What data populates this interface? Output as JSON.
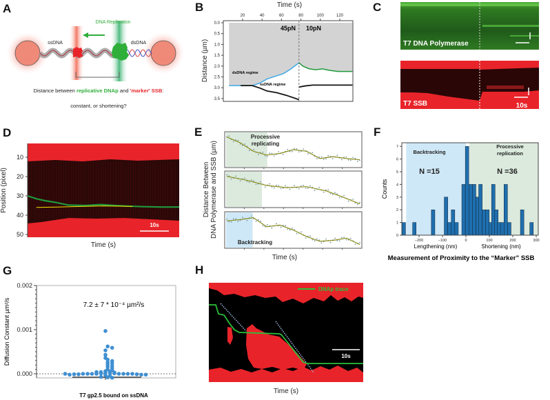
{
  "panel_labels": [
    "A",
    "B",
    "C",
    "D",
    "E",
    "F",
    "G",
    "H"
  ],
  "colors": {
    "green": "#1f9a3c",
    "red": "#e8242a",
    "blue": "#3ea8e6",
    "black": "#111111",
    "gray": "#d3d3d3",
    "hist": "#1f6fae",
    "dot": "#3f8fd2",
    "ltblue": "#cfe8f7",
    "ltgreen": "#dbeadd"
  },
  "panel_a": {
    "replication_label": "DNA Replication",
    "ssdna_label": "ssDNA",
    "dsdna_label": "dsDNA",
    "caption_pre": "Distance between ",
    "caption_dnap": "replicative DNAp",
    "caption_mid": " and ",
    "caption_ssb": "'marker' SSB",
    "caption_end": ":",
    "question": "constant, or shortening?"
  },
  "chart_data": [
    {
      "id": "B",
      "type": "line",
      "xlabel": "Time (s)",
      "ylabel": "Distance (µm)",
      "xticks": [
        20,
        40,
        60,
        80,
        100,
        120
      ],
      "yticks": [
        "0.0",
        "0.5",
        "1.0",
        "1.5",
        "2.0",
        "2.5",
        "3.0",
        "3.5"
      ],
      "xlim": [
        -0.3,
        133.5
      ],
      "ylim": [
        0,
        3.6
      ],
      "y_inverted": true,
      "force_switch_time": 78,
      "annotations": [
        "45pN",
        "10pN",
        "dsDNA regime",
        "ssDNA regime"
      ],
      "series": [
        {
          "name": "dsDNA (45pN)",
          "color": "#3ea8e6",
          "points": [
            [
              6,
              2.9
            ],
            [
              30,
              2.9
            ],
            [
              38,
              2.78
            ],
            [
              45,
              2.6
            ],
            [
              55,
              2.45
            ],
            [
              62,
              2.35
            ],
            [
              70,
              2.12
            ],
            [
              78,
              1.85
            ]
          ]
        },
        {
          "name": "ssDNA (45pN)",
          "color": "#111111",
          "points": [
            [
              18,
              2.9
            ],
            [
              30,
              2.9
            ],
            [
              38,
              3.02
            ],
            [
              45,
              3.15
            ],
            [
              55,
              3.23
            ],
            [
              65,
              3.35
            ],
            [
              78,
              3.55
            ]
          ]
        },
        {
          "name": "dsDNA (10pN)",
          "color": "#1f9a3c",
          "points": [
            [
              78,
              1.85
            ],
            [
              82,
              2.0
            ],
            [
              88,
              2.12
            ],
            [
              95,
              2.17
            ],
            [
              102,
              2.13
            ],
            [
              110,
              2.2
            ],
            [
              118,
              2.25
            ],
            [
              133,
              2.25
            ]
          ]
        },
        {
          "name": "ssDNA (10pN)",
          "color": "#111111",
          "points": [
            [
              78,
              2.97
            ],
            [
              84,
              2.92
            ],
            [
              92,
              2.88
            ],
            [
              110,
              2.88
            ],
            [
              133,
              2.88
            ]
          ]
        }
      ]
    },
    {
      "id": "C",
      "type": "heatmap",
      "channels": [
        "T7 DNA Polymerase",
        "T7 SSB"
      ],
      "scale_bar": "10s"
    },
    {
      "id": "D",
      "type": "heatmap",
      "xlabel": "Time (s)",
      "ylabel": "Position (pixel)",
      "yticks": [
        10,
        20,
        30,
        40,
        50
      ],
      "ylim": [
        2.5,
        51
      ],
      "xlim": [
        0,
        52
      ],
      "scale_bar": "10s",
      "series": [
        {
          "name": "DNAp trace",
          "color": "#1f9a3c",
          "points": [
            [
              0,
              30
            ],
            [
              3,
              31.5
            ],
            [
              6,
              32.5
            ],
            [
              10,
              33.5
            ],
            [
              14,
              34.8
            ],
            [
              20,
              35
            ],
            [
              25,
              34.5
            ],
            [
              30,
              35
            ],
            [
              34,
              35.3
            ],
            [
              40,
              35.6
            ],
            [
              46,
              35.8
            ],
            [
              52,
              35.8
            ]
          ]
        },
        {
          "name": "SSB trace",
          "color": "#f2e400",
          "points": [
            [
              3,
              36
            ],
            [
              10,
              35.8
            ],
            [
              18,
              35.5
            ],
            [
              26,
              35.2
            ],
            [
              33,
              35.4
            ],
            [
              36,
              35.5
            ]
          ]
        }
      ]
    },
    {
      "id": "E",
      "type": "line",
      "xlabel": "Time (s)",
      "ylabel_line1": "Distance Between",
      "ylabel_line2": "DNA Polymerase and SSB (µm)",
      "panels": [
        {
          "label_1": "Processive",
          "label_2": "replicating",
          "shade": "#dbeadd",
          "shade_range": [
            0,
            0.31
          ],
          "fit": [
            [
              0,
              0.9
            ],
            [
              0.1,
              0.72
            ],
            [
              0.2,
              0.45
            ],
            [
              0.3,
              0.33
            ],
            [
              0.4,
              0.38
            ],
            [
              0.5,
              0.5
            ],
            [
              0.6,
              0.45
            ],
            [
              0.7,
              0.22
            ],
            [
              0.8,
              0.28
            ],
            [
              0.9,
              0.22
            ],
            [
              1,
              0.18
            ]
          ]
        },
        {
          "label_1": "",
          "label_2": "",
          "shade": "#dbeadd",
          "shade_range": [
            0,
            0.27
          ],
          "fit": [
            [
              0,
              0.9
            ],
            [
              0.15,
              0.78
            ],
            [
              0.3,
              0.62
            ],
            [
              0.45,
              0.55
            ],
            [
              0.6,
              0.58
            ],
            [
              0.75,
              0.45
            ],
            [
              0.88,
              0.25
            ],
            [
              1,
              0.05
            ]
          ]
        },
        {
          "label_1": "Backtracking",
          "label_2": "",
          "shade": "#cfe8f7",
          "shade_range": [
            0,
            0.2
          ],
          "fit": [
            [
              0,
              0.78
            ],
            [
              0.1,
              0.82
            ],
            [
              0.2,
              0.88
            ],
            [
              0.3,
              0.6
            ],
            [
              0.4,
              0.65
            ],
            [
              0.5,
              0.5
            ],
            [
              0.6,
              0.3
            ],
            [
              0.7,
              0.15
            ],
            [
              0.8,
              0.18
            ],
            [
              0.9,
              0.25
            ],
            [
              1,
              0.05
            ]
          ]
        }
      ]
    },
    {
      "id": "F",
      "type": "bar",
      "title": "Measurement of Proximity to the “Marker” SSB",
      "xlabel_left": "Lengthening (nm)",
      "xlabel_right": "Shortening (nm)",
      "ylabel": "Counts",
      "xticks": [
        -200,
        -100,
        0,
        100,
        200,
        300
      ],
      "yticks": [
        0,
        1,
        2,
        3,
        4,
        5,
        6,
        7
      ],
      "xlim": [
        -280,
        305
      ],
      "ylim": [
        0,
        7.2
      ],
      "regions": [
        {
          "name": "Backtracking",
          "n_label": "N =15",
          "range": [
            -255,
            0
          ],
          "color": "#cfe8f7"
        },
        {
          "name_1": "Processive",
          "name_2": "replication",
          "n_label": "N =36",
          "range": [
            15,
            305
          ],
          "color": "#dbeadd"
        }
      ],
      "bin_width": 15,
      "bins": [
        [
          -265,
          1
        ],
        [
          -220,
          1
        ],
        [
          -140,
          2
        ],
        [
          -85,
          3
        ],
        [
          -70,
          1
        ],
        [
          -55,
          2
        ],
        [
          -40,
          1
        ],
        [
          -10,
          4
        ],
        [
          5,
          7
        ],
        [
          20,
          4
        ],
        [
          35,
          4
        ],
        [
          50,
          3
        ],
        [
          62,
          4
        ],
        [
          77,
          2
        ],
        [
          92,
          2
        ],
        [
          105,
          1
        ],
        [
          117,
          4
        ],
        [
          130,
          2
        ],
        [
          142,
          1
        ],
        [
          155,
          1
        ],
        [
          170,
          4
        ],
        [
          185,
          1
        ],
        [
          240,
          2
        ],
        [
          280,
          1
        ]
      ]
    },
    {
      "id": "G",
      "type": "scatter",
      "xlabel": "T7 gp2.5 bound on ssDNA",
      "ylabel": "Diffusion Constant  µm²/s",
      "yticks": [
        "0.000",
        "0.001",
        "0.002"
      ],
      "ylim": [
        -0.0001,
        0.002
      ],
      "annotation": "7.2 ± 7 * 10⁻⁴ µm²/s",
      "values": [
        0.00097,
        0.00062,
        0.00059,
        0.00053,
        0.00043,
        0.00036,
        0.00032,
        0.00029,
        0.00026,
        0.00024,
        0.00021,
        0.00018,
        0.00016,
        0.0001,
        8e-05,
        6e-05,
        5e-05,
        4e-05,
        3e-05,
        2e-05,
        2e-05,
        1e-05,
        1e-05,
        0.0,
        0.0,
        0.0,
        0.0,
        0.0,
        0.0,
        0.0,
        0.0,
        -1e-05,
        -1e-05,
        -1e-05,
        -2e-05,
        -2e-05,
        -2e-05,
        -3e-05,
        -5e-05,
        -7e-05,
        -8e-05,
        -9e-05,
        0.00013,
        4e-05,
        0.0
      ]
    },
    {
      "id": "H",
      "type": "heatmap",
      "xlabel": "Time (s)",
      "legend": "DNAp trace",
      "scale_bar": "10s",
      "xlim": [
        0,
        56
      ],
      "series": [
        {
          "name": "DNAp trace",
          "color": "#2bbf3a",
          "points": [
            [
              0,
              0.222
            ],
            [
              2.5,
              0.222
            ],
            [
              3.5,
              0.313
            ],
            [
              5.5,
              0.326
            ],
            [
              7.5,
              0.41
            ],
            [
              9.25,
              0.472
            ],
            [
              11,
              0.5
            ],
            [
              25.5,
              0.514
            ],
            [
              26.25,
              0.521
            ],
            [
              29.25,
              0.625
            ],
            [
              34.25,
              0.8
            ],
            [
              36,
              0.813
            ],
            [
              56,
              0.813
            ]
          ]
        },
        {
          "name": "slope guide 1",
          "color": "#9fb6e0",
          "points": [
            [
              4.25,
              0.208
            ],
            [
              13.5,
              0.486
            ]
          ]
        },
        {
          "name": "slope guide 2",
          "color": "#9fb6e0",
          "points": [
            [
              24.25,
              0.389
            ],
            [
              38,
              0.903
            ]
          ]
        }
      ]
    }
  ]
}
